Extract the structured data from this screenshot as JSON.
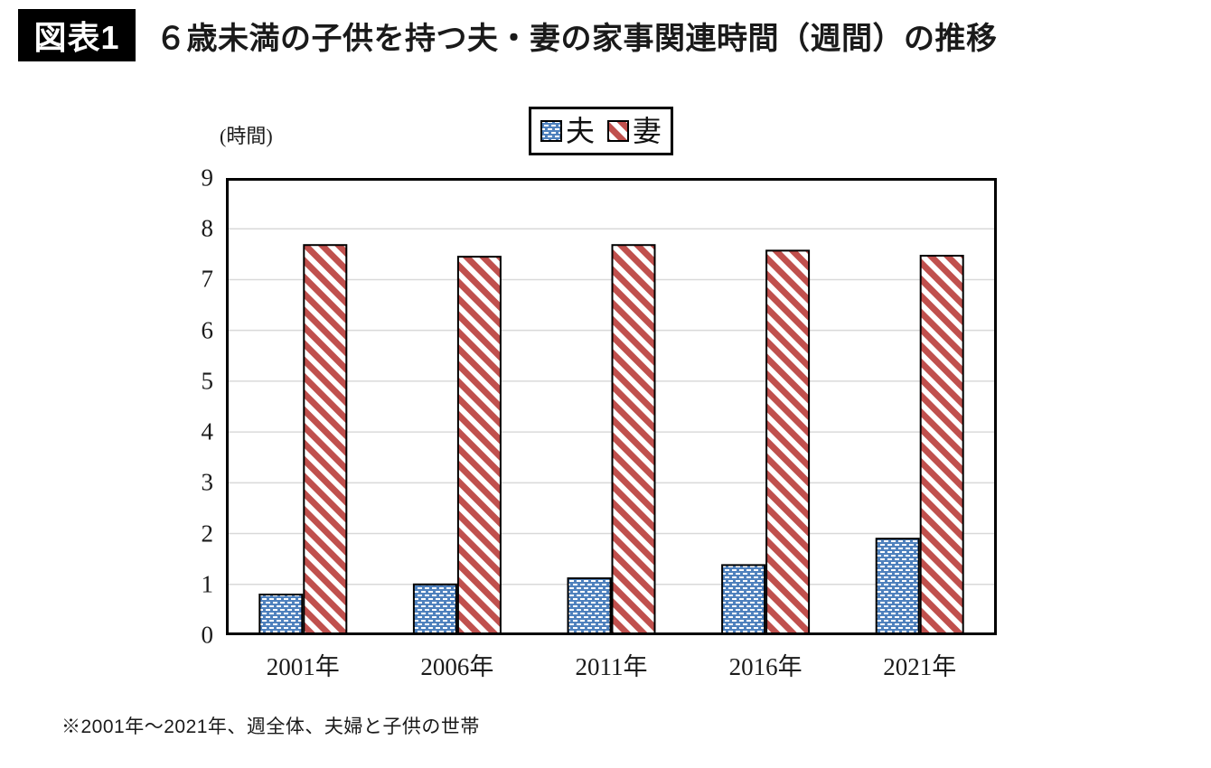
{
  "header": {
    "badge": "図表1",
    "title": "６歳未満の子供を持つ夫・妻の家事関連時間（週間）の推移"
  },
  "footnote": "※2001年～2021年、週全体、夫婦と子供の世帯",
  "chart_data": {
    "type": "bar",
    "title": "６歳未満の子供を持つ夫・妻の家事関連時間（週間）の推移",
    "unit_label": "(時間)",
    "categories": [
      "2001年",
      "2006年",
      "2011年",
      "2016年",
      "2021年"
    ],
    "series": [
      {
        "name": "夫",
        "values": [
          0.8,
          1.0,
          1.12,
          1.38,
          1.9
        ],
        "color": "#4f81bd",
        "pattern": "white-dashes-on-blue"
      },
      {
        "name": "妻",
        "values": [
          7.68,
          7.45,
          7.68,
          7.57,
          7.47
        ],
        "color": "#c0504d",
        "pattern": "red-diagonal-stripes-on-white"
      }
    ],
    "ylim": [
      0,
      9
    ],
    "ytick_step": 1,
    "grid": true,
    "legend_position": "top-center",
    "colors": {
      "grid": "#d9d9d9",
      "border": "#000000",
      "background": "#ffffff"
    }
  }
}
